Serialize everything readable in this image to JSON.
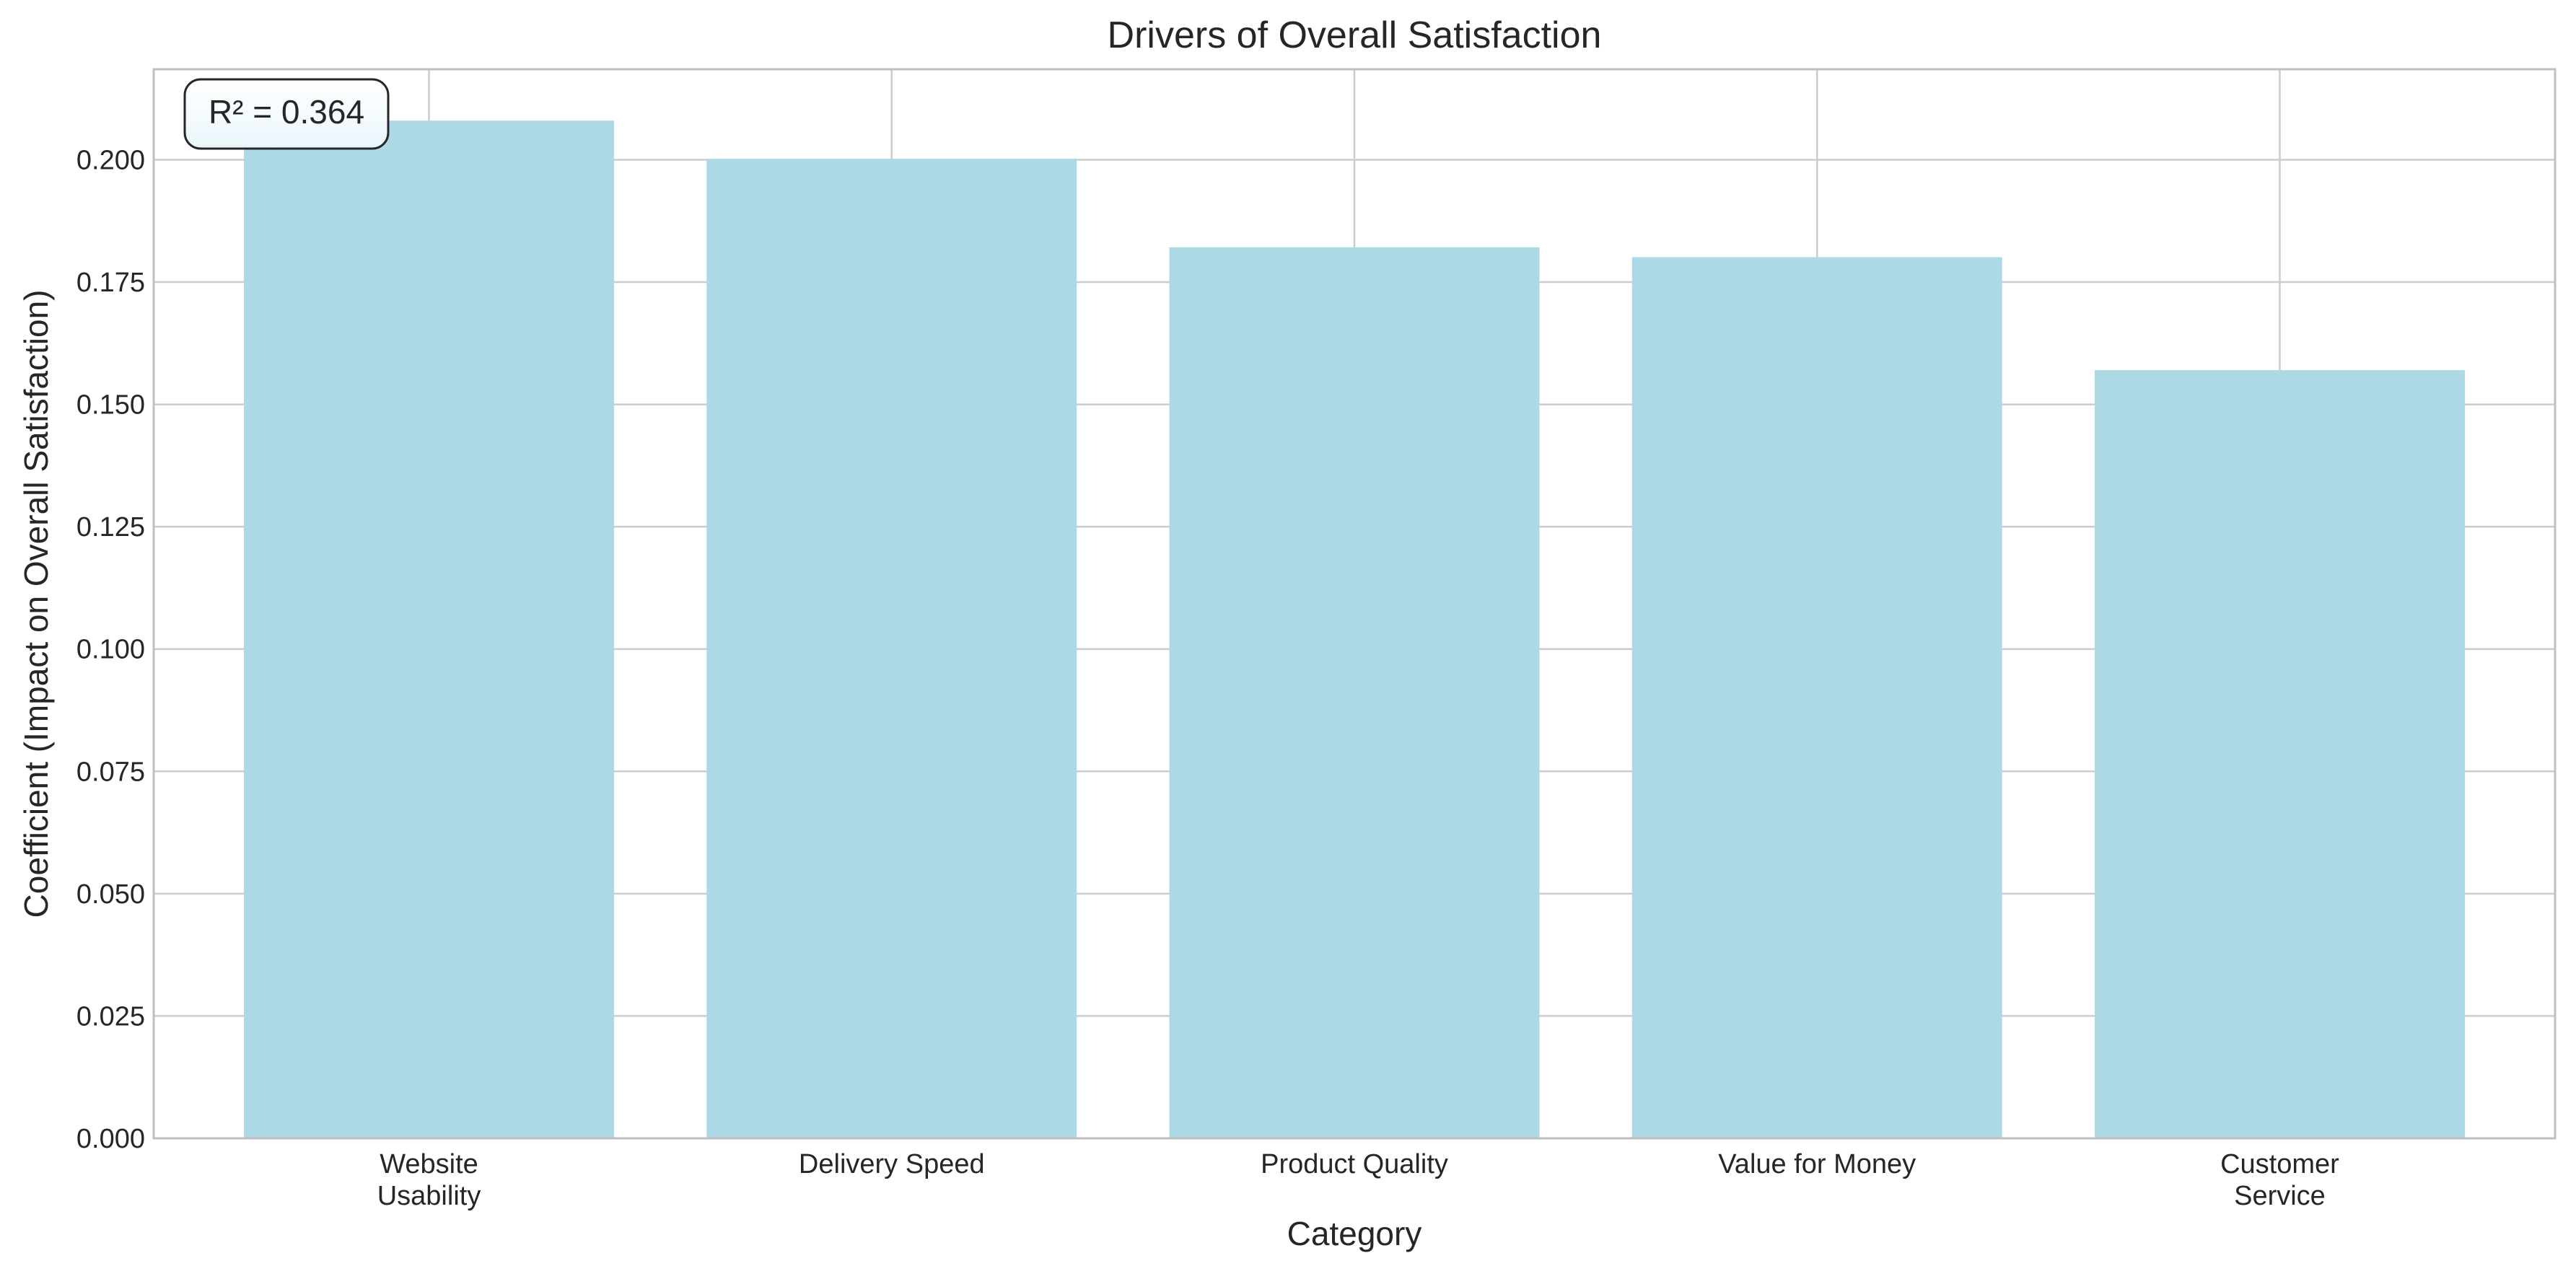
{
  "chart_data": {
    "type": "bar",
    "title": "Drivers of Overall Satisfaction",
    "xlabel": "Category",
    "ylabel": "Coefficient (Impact on Overall Satisfaction)",
    "categories": [
      [
        "Website",
        "Usability"
      ],
      [
        "Delivery Speed"
      ],
      [
        "Product Quality"
      ],
      [
        "Value for Money"
      ],
      [
        "Customer",
        "Service"
      ]
    ],
    "values": [
      0.208,
      0.2002,
      0.1821,
      0.1801,
      0.157
    ],
    "ylim": [
      0,
      0.2185
    ],
    "yticks": [
      "0.000",
      "0.025",
      "0.050",
      "0.075",
      "0.100",
      "0.125",
      "0.150",
      "0.175",
      "0.200"
    ],
    "grid": true,
    "annotation": "R² = 0.364",
    "colors": {
      "bar": "#add8e6",
      "grid": "#cccccc",
      "axes": "#bfbfbf",
      "text": "#262626",
      "annotation_bg_top": "#ffffff",
      "annotation_bg_bottom": "#eaf6fb"
    }
  }
}
